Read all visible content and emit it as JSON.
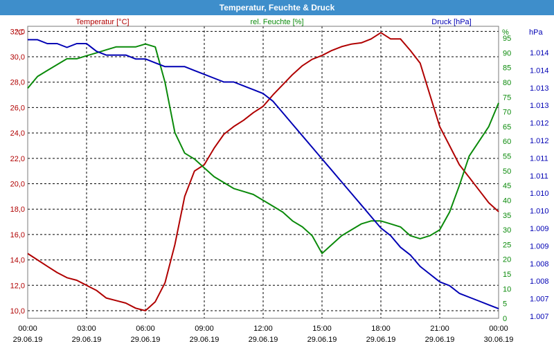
{
  "chart_data": {
    "type": "line",
    "title": "Temperatur, Feuchte & Druck",
    "colors": {
      "temperature": "#b00000",
      "humidity": "#0a8a0a",
      "pressure": "#0000b4",
      "title_bar": "#3e8ecb"
    },
    "axes": {
      "temperature": {
        "label": "Temperatur [°C]",
        "unit": "°C",
        "range": [
          9.4,
          32.4
        ],
        "ticks": [
          "10,0",
          "12,0",
          "14,0",
          "16,0",
          "18,0",
          "20,0",
          "22,0",
          "24,0",
          "26,0",
          "28,0",
          "30,0",
          "32,0"
        ]
      },
      "humidity": {
        "label": "rel. Feuchte [%]",
        "unit": "%",
        "range": [
          0,
          99
        ],
        "ticks": [
          "0",
          "5",
          "10",
          "15",
          "20",
          "25",
          "30",
          "35",
          "40",
          "45",
          "50",
          "55",
          "60",
          "65",
          "70",
          "75",
          "80",
          "85",
          "90",
          "95"
        ]
      },
      "pressure": {
        "label": "Druck [hPa]",
        "unit": "hPa",
        "ticks": [
          "1.007",
          "1.007",
          "1.008",
          "1.008",
          "1.009",
          "1.009",
          "1.010",
          "1.010",
          "1.011",
          "1.011",
          "1.012",
          "1.012",
          "1.013",
          "1.013",
          "1.014",
          "1.014"
        ]
      }
    },
    "x_ticks": [
      {
        "time": "00:00",
        "date": "29.06.19"
      },
      {
        "time": "03:00",
        "date": "29.06.19"
      },
      {
        "time": "06:00",
        "date": "29.06.19"
      },
      {
        "time": "09:00",
        "date": "29.06.19"
      },
      {
        "time": "12:00",
        "date": "29.06.19"
      },
      {
        "time": "15:00",
        "date": "29.06.19"
      },
      {
        "time": "18:00",
        "date": "29.06.19"
      },
      {
        "time": "21:00",
        "date": "29.06.19"
      },
      {
        "time": "00:00",
        "date": "30.06.19"
      }
    ],
    "x_range_hours": [
      0,
      24
    ],
    "grid": true,
    "series": [
      {
        "name": "Temperatur [°C]",
        "axis": "temperature",
        "x": [
          0,
          0.5,
          1,
          1.5,
          2,
          2.5,
          3,
          3.5,
          4,
          4.5,
          5,
          5.5,
          6,
          6.5,
          7,
          7.5,
          8,
          8.5,
          9,
          9.5,
          10,
          10.5,
          11,
          11.5,
          12,
          12.5,
          13,
          13.5,
          14,
          14.5,
          15,
          15.5,
          16,
          16.5,
          17,
          17.5,
          18,
          18.5,
          19,
          19.5,
          20,
          20.5,
          21,
          21.5,
          22,
          22.5,
          23,
          23.5,
          24
        ],
        "values": [
          14.5,
          14.0,
          13.5,
          13.0,
          12.6,
          12.4,
          12.0,
          11.6,
          11.0,
          10.8,
          10.6,
          10.2,
          10.0,
          10.7,
          12.2,
          15.2,
          19.0,
          21.0,
          21.5,
          22.8,
          23.9,
          24.5,
          25.0,
          25.6,
          26.1,
          27.0,
          27.8,
          28.6,
          29.3,
          29.8,
          30.1,
          30.5,
          30.8,
          31.0,
          31.1,
          31.4,
          31.9,
          31.4,
          31.4,
          30.5,
          29.5,
          27.0,
          24.5,
          23.0,
          21.5,
          20.5,
          19.5,
          18.5,
          17.8
        ]
      },
      {
        "name": "rel. Feuchte [%]",
        "axis": "humidity",
        "x": [
          0,
          0.5,
          1,
          1.5,
          2,
          2.5,
          3,
          3.5,
          4,
          4.5,
          5,
          5.5,
          6,
          6.5,
          7,
          7.5,
          8,
          8.5,
          9,
          9.5,
          10,
          10.5,
          11,
          11.5,
          12,
          12.5,
          13,
          13.5,
          14,
          14.5,
          15,
          15.5,
          16,
          16.5,
          17,
          17.5,
          18,
          18.5,
          19,
          19.5,
          20,
          20.5,
          21,
          21.5,
          22,
          22.5,
          23,
          23.5,
          24
        ],
        "values": [
          78,
          82,
          84,
          86,
          88,
          88,
          89,
          90,
          91,
          92,
          92,
          92,
          93,
          92,
          80,
          63,
          56,
          54,
          51,
          48,
          46,
          44,
          43,
          42,
          40,
          38,
          36,
          33,
          31,
          28,
          22,
          25,
          28,
          30,
          32,
          33,
          33,
          32,
          31,
          28,
          27,
          28,
          30,
          36,
          45,
          55,
          60,
          65,
          73
        ]
      },
      {
        "name": "Druck [hPa]",
        "axis": "pressure",
        "x": [
          0,
          0.5,
          1,
          1.5,
          2,
          2.5,
          3,
          3.5,
          4,
          4.5,
          5,
          5.5,
          6,
          6.5,
          7,
          7.5,
          8,
          8.5,
          9,
          9.5,
          10,
          10.5,
          11,
          11.5,
          12,
          12.5,
          13,
          13.5,
          14,
          14.5,
          15,
          15.5,
          16,
          16.5,
          17,
          17.5,
          18,
          18.5,
          19,
          19.5,
          20,
          20.5,
          21,
          21.5,
          22,
          22.5,
          23,
          23.5,
          24
        ],
        "values": [
          1.0141,
          1.0141,
          1.014,
          1.014,
          1.0139,
          1.014,
          1.014,
          1.0138,
          1.0137,
          1.0137,
          1.0137,
          1.0136,
          1.0136,
          1.0135,
          1.0134,
          1.0134,
          1.0134,
          1.0133,
          1.0132,
          1.0131,
          1.013,
          1.013,
          1.0129,
          1.0128,
          1.0127,
          1.0125,
          1.0122,
          1.0119,
          1.0116,
          1.0113,
          1.011,
          1.0107,
          1.0104,
          1.0101,
          1.0098,
          1.0095,
          1.0092,
          1.009,
          1.0087,
          1.0085,
          1.0082,
          1.008,
          1.0078,
          1.0077,
          1.0075,
          1.0074,
          1.0073,
          1.0072,
          1.0071
        ]
      }
    ]
  }
}
